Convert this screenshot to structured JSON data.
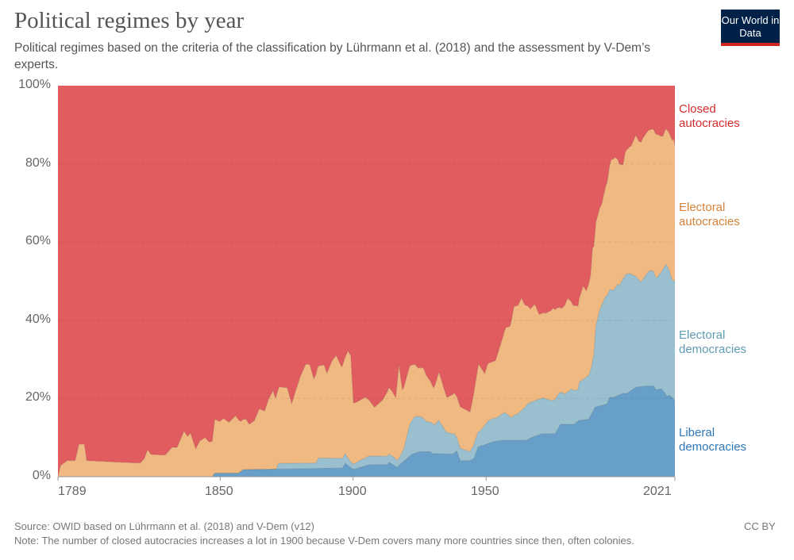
{
  "header": {
    "title": "Political regimes by year",
    "subtitle": "Political regimes based on the criteria of the classification by Lührmann et al. (2018) and the assessment by V-Dem’s experts.",
    "logo": "Our World in Data"
  },
  "footer": {
    "source": "Source: OWID based on Lührmann et al. (2018) and V-Dem (v12)",
    "note": "Note: The number of closed autocracies increases a lot in 1900 because V-Dem covers many more countries since then, often colonies.",
    "license": "CC BY"
  },
  "chart_data": {
    "type": "area",
    "stacked": true,
    "percent": true,
    "xlim": [
      1789,
      2021
    ],
    "ylim": [
      0,
      100
    ],
    "x_ticks": [
      "1789",
      "1850",
      "1900",
      "1950",
      "2021"
    ],
    "y_ticks": [
      "0%",
      "20%",
      "40%",
      "60%",
      "80%",
      "100%"
    ],
    "grid": "horizontal dashed",
    "legend": "right, inline labels",
    "series": [
      {
        "name": "Liberal democracies",
        "color": "#689fc8",
        "label_color": "#2e78b8",
        "points": [
          [
            1789,
            0
          ],
          [
            1847,
            0
          ],
          [
            1848,
            0.9
          ],
          [
            1857,
            0.9
          ],
          [
            1858.6,
            1.8
          ],
          [
            1896,
            2.2
          ],
          [
            1897,
            3.4
          ],
          [
            1898.5,
            2.6
          ],
          [
            1900,
            1.9
          ],
          [
            1901,
            2.0
          ],
          [
            1906,
            3.1
          ],
          [
            1913,
            3.1
          ],
          [
            1913.5,
            3.7
          ],
          [
            1916.5,
            2.4
          ],
          [
            1918.5,
            3.6
          ],
          [
            1922,
            5.7
          ],
          [
            1925,
            6.4
          ],
          [
            1929,
            6.4
          ],
          [
            1930,
            5.9
          ],
          [
            1937.5,
            5.8
          ],
          [
            1939,
            6.6
          ],
          [
            1940.3,
            4.1
          ],
          [
            1943.8,
            4.1
          ],
          [
            1945.4,
            4.6
          ],
          [
            1947,
            7.6
          ],
          [
            1950,
            8.3
          ],
          [
            1953,
            9
          ],
          [
            1956,
            9.3
          ],
          [
            1965,
            9.3
          ],
          [
            1967,
            10
          ],
          [
            1971,
            11
          ],
          [
            1976,
            11
          ],
          [
            1978,
            13.4
          ],
          [
            1983,
            13.4
          ],
          [
            1985,
            14.4
          ],
          [
            1988.6,
            14.7
          ],
          [
            1991,
            17.8
          ],
          [
            1995.5,
            18.6
          ],
          [
            1996.5,
            20.3
          ],
          [
            1998,
            20.3
          ],
          [
            2001.5,
            21.3
          ],
          [
            2003,
            21.3
          ],
          [
            2006.3,
            22.9
          ],
          [
            2010.5,
            23.2
          ],
          [
            2013,
            23.2
          ],
          [
            2014,
            22.2
          ],
          [
            2016,
            22.5
          ],
          [
            2018,
            20.6
          ],
          [
            2019,
            20.8
          ],
          [
            2020.5,
            19.9
          ],
          [
            2021,
            19
          ]
        ]
      },
      {
        "name": "Electoral democracies",
        "color": "#9abfce",
        "label_color": "#5f9cb3",
        "points": [
          [
            1789,
            0
          ],
          [
            1871,
            0
          ],
          [
            1872,
            1.5
          ],
          [
            1886,
            1.4
          ],
          [
            1887,
            2.7
          ],
          [
            1895.6,
            2.5
          ],
          [
            1897,
            2.5
          ],
          [
            1898.5,
            1.7
          ],
          [
            1900,
            1.3
          ],
          [
            1902.6,
            1.8
          ],
          [
            1906,
            2.2
          ],
          [
            1915,
            2.1
          ],
          [
            1917,
            1.7
          ],
          [
            1919,
            3.1
          ],
          [
            1921.3,
            8.1
          ],
          [
            1923.3,
            9.4
          ],
          [
            1926,
            8.8
          ],
          [
            1927.5,
            7.7
          ],
          [
            1930.8,
            7.5
          ],
          [
            1932.2,
            8.6
          ],
          [
            1935,
            5.6
          ],
          [
            1938,
            5
          ],
          [
            1939,
            3.4
          ],
          [
            1940.5,
            3.1
          ],
          [
            1944,
            2.3
          ],
          [
            1945.7,
            3.8
          ],
          [
            1947.7,
            3.9
          ],
          [
            1951,
            5.9
          ],
          [
            1954,
            6
          ],
          [
            1957,
            7.1
          ],
          [
            1959.5,
            5.9
          ],
          [
            1962.5,
            7.1
          ],
          [
            1965.6,
            9.1
          ],
          [
            1968.5,
            9.1
          ],
          [
            1971.5,
            9.1
          ],
          [
            1974.5,
            8.5
          ],
          [
            1976.7,
            8.8
          ],
          [
            1979.5,
            7.7
          ],
          [
            1982,
            9
          ],
          [
            1984.6,
            8.1
          ],
          [
            1985,
            9.8
          ],
          [
            1987.7,
            10.8
          ],
          [
            1989.5,
            11.8
          ],
          [
            1990.5,
            14
          ],
          [
            1991.3,
            20.9
          ],
          [
            1992.8,
            24.7
          ],
          [
            1995,
            27.7
          ],
          [
            1998,
            27.4
          ],
          [
            1999.5,
            28.5
          ],
          [
            2000,
            27.9
          ],
          [
            2002.8,
            30.6
          ],
          [
            2004,
            30.2
          ],
          [
            2008.3,
            26.7
          ],
          [
            2011,
            29.2
          ],
          [
            2012.5,
            29.6
          ],
          [
            2013.8,
            28.5
          ],
          [
            2016,
            29.9
          ],
          [
            2017.5,
            33.2
          ],
          [
            2018,
            33.4
          ],
          [
            2020,
            30
          ],
          [
            2021,
            30.7
          ]
        ]
      },
      {
        "name": "Electoral autocracies",
        "color": "#f0b982",
        "label_color": "#d5823a",
        "points": [
          [
            1789,
            0
          ],
          [
            1790,
            2.9
          ],
          [
            1792.5,
            4.1
          ],
          [
            1795.5,
            4.1
          ],
          [
            1796.9,
            8.3
          ],
          [
            1798.9,
            8.3
          ],
          [
            1799.8,
            4.1
          ],
          [
            1815,
            3.6
          ],
          [
            1820,
            3.5
          ],
          [
            1821.5,
            4.7
          ],
          [
            1822.7,
            6.9
          ],
          [
            1824,
            5.7
          ],
          [
            1829.3,
            5.5
          ],
          [
            1831.9,
            7.5
          ],
          [
            1833.8,
            7.5
          ],
          [
            1836.4,
            11.6
          ],
          [
            1837.8,
            10.3
          ],
          [
            1838.8,
            11.2
          ],
          [
            1840.8,
            7.1
          ],
          [
            1842.3,
            9.1
          ],
          [
            1844.3,
            10
          ],
          [
            1845.8,
            8.9
          ],
          [
            1847,
            9
          ],
          [
            1848,
            13.8
          ],
          [
            1849.8,
            13.2
          ],
          [
            1851.3,
            14
          ],
          [
            1853.3,
            13
          ],
          [
            1855.8,
            14.7
          ],
          [
            1857.8,
            12.8
          ],
          [
            1859.7,
            12.9
          ],
          [
            1860.9,
            11.6
          ],
          [
            1862.9,
            12.5
          ],
          [
            1864.7,
            15.5
          ],
          [
            1866.7,
            14.9
          ],
          [
            1868.2,
            17.9
          ],
          [
            1869.9,
            20.1
          ],
          [
            1870.7,
            18.2
          ],
          [
            1872.2,
            19.5
          ],
          [
            1875.2,
            19.3
          ],
          [
            1876.9,
            15.2
          ],
          [
            1878.2,
            18.1
          ],
          [
            1880.2,
            22.2
          ],
          [
            1882.2,
            25.3
          ],
          [
            1883.7,
            25.2
          ],
          [
            1885.2,
            21.5
          ],
          [
            1886.6,
            23.5
          ],
          [
            1889.1,
            23.8
          ],
          [
            1890.1,
            21.7
          ],
          [
            1892.1,
            24.9
          ],
          [
            1893.6,
            26.3
          ],
          [
            1895.6,
            23.4
          ],
          [
            1897,
            24.6
          ],
          [
            1898.1,
            27.5
          ],
          [
            1899.1,
            27.1
          ],
          [
            1900.1,
            15.6
          ],
          [
            1902.1,
            15.4
          ],
          [
            1904.6,
            15.5
          ],
          [
            1908,
            12.5
          ],
          [
            1911,
            14.3
          ],
          [
            1913.3,
            17
          ],
          [
            1914.5,
            16.6
          ],
          [
            1916,
            15.7
          ],
          [
            1917.2,
            23.9
          ],
          [
            1918.5,
            15.9
          ],
          [
            1921.3,
            14.9
          ],
          [
            1924.5,
            12.3
          ],
          [
            1926.5,
            12.8
          ],
          [
            1927.5,
            11.8
          ],
          [
            1930.3,
            9.3
          ],
          [
            1932.3,
            12.3
          ],
          [
            1935.3,
            8.9
          ],
          [
            1938,
            10.4
          ],
          [
            1940.5,
            10.6
          ],
          [
            1944,
            10.1
          ],
          [
            1947.3,
            17.3
          ],
          [
            1949.5,
            13.2
          ],
          [
            1950.5,
            14.6
          ],
          [
            1953.5,
            14.6
          ],
          [
            1956,
            19
          ],
          [
            1957.5,
            22
          ],
          [
            1959,
            23
          ],
          [
            1960.5,
            27.9
          ],
          [
            1962,
            27.6
          ],
          [
            1963.3,
            28.8
          ],
          [
            1964.5,
            26.3
          ],
          [
            1966.7,
            23.9
          ],
          [
            1968.3,
            24.7
          ],
          [
            1970,
            21.6
          ],
          [
            1972.5,
            21.9
          ],
          [
            1975.3,
            23.5
          ],
          [
            1978.3,
            21.4
          ],
          [
            1980.7,
            23.9
          ],
          [
            1982.5,
            21.8
          ],
          [
            1985,
            21.3
          ],
          [
            1986.5,
            23.9
          ],
          [
            1987.7,
            22.1
          ],
          [
            1989.3,
            24.2
          ],
          [
            1990,
            29
          ],
          [
            1991,
            26.4
          ],
          [
            1993.5,
            25.8
          ],
          [
            1995.5,
            28.9
          ],
          [
            1997,
            33.2
          ],
          [
            1998.3,
            33.7
          ],
          [
            2000.5,
            30.5
          ],
          [
            2001.5,
            29.1
          ],
          [
            2002.3,
            31.4
          ],
          [
            2004.5,
            32.7
          ],
          [
            2006.3,
            36.1
          ],
          [
            2007.5,
            35.4
          ],
          [
            2009,
            36.2
          ],
          [
            2012.5,
            36.1
          ],
          [
            2014,
            36.8
          ],
          [
            2016.5,
            34.1
          ],
          [
            2019.5,
            35.4
          ],
          [
            2020.5,
            36.1
          ],
          [
            2021,
            35
          ]
        ]
      },
      {
        "name": "Closed autocracies",
        "color": "#e15c5f",
        "label_color": "#d42a2d",
        "points": "remainder"
      }
    ]
  }
}
